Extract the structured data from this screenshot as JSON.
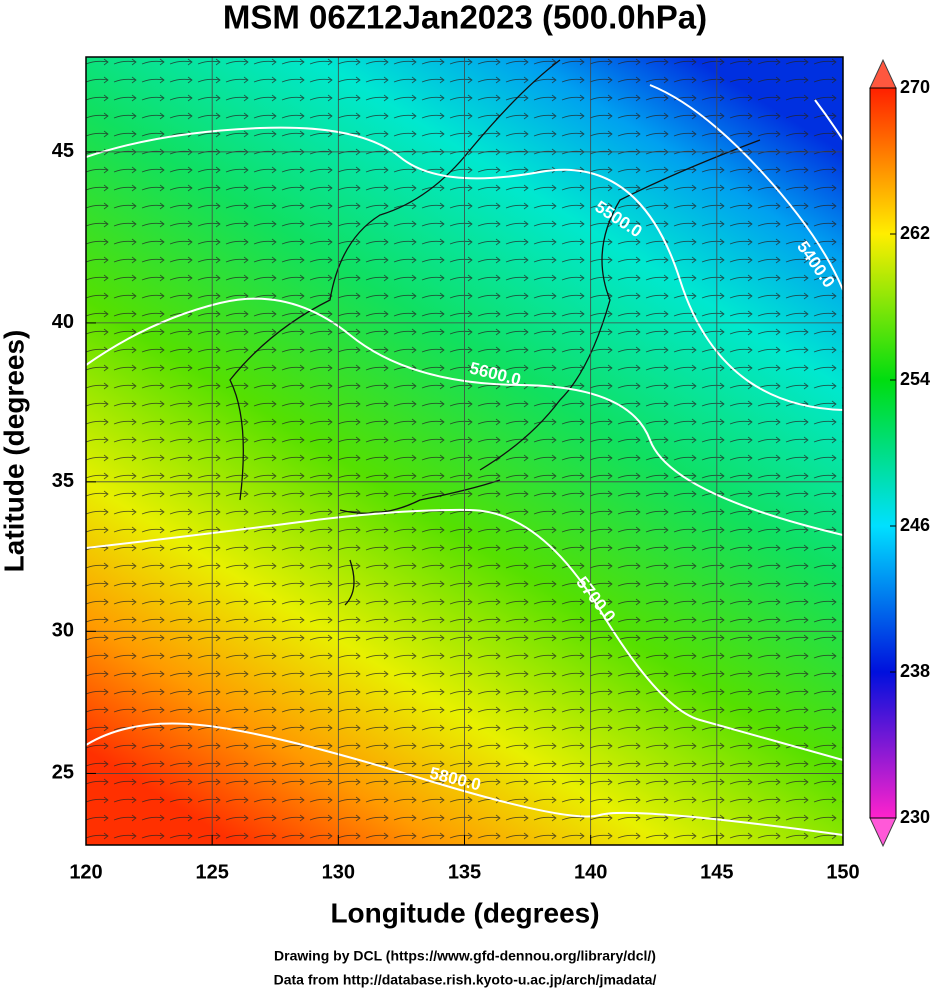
{
  "chart_data": {
    "type": "map",
    "title": "MSM 06Z12Jan2023 (500.0hPa)",
    "x_label": "Longitude (degrees)",
    "y_label": "Latitude  (degrees)",
    "xlim": [
      120,
      150
    ],
    "ylim": [
      22.4,
      47.6
    ],
    "xticks": [
      120,
      125,
      130,
      135,
      140,
      145,
      150
    ],
    "yticks": [
      25,
      30,
      35,
      40,
      45
    ],
    "grid": true,
    "colorbar": {
      "lim": [
        230,
        270
      ],
      "ticks": [
        230,
        238,
        246,
        254,
        262,
        270
      ],
      "colors": [
        "#ff22cc",
        "#0010dd",
        "#00e0ff",
        "#00dd10",
        "#ffee00",
        "#ff2000"
      ]
    },
    "contour_labels": [
      "5400.0",
      "5500.0",
      "5600.0",
      "5700.0",
      "5800.0"
    ],
    "credits": [
      "Drawing by DCL (https://www.gfd-dennou.org/library/dcl/)",
      "Data from http://database.rish.kyoto-u.ac.jp/arch/jmadata/"
    ]
  }
}
